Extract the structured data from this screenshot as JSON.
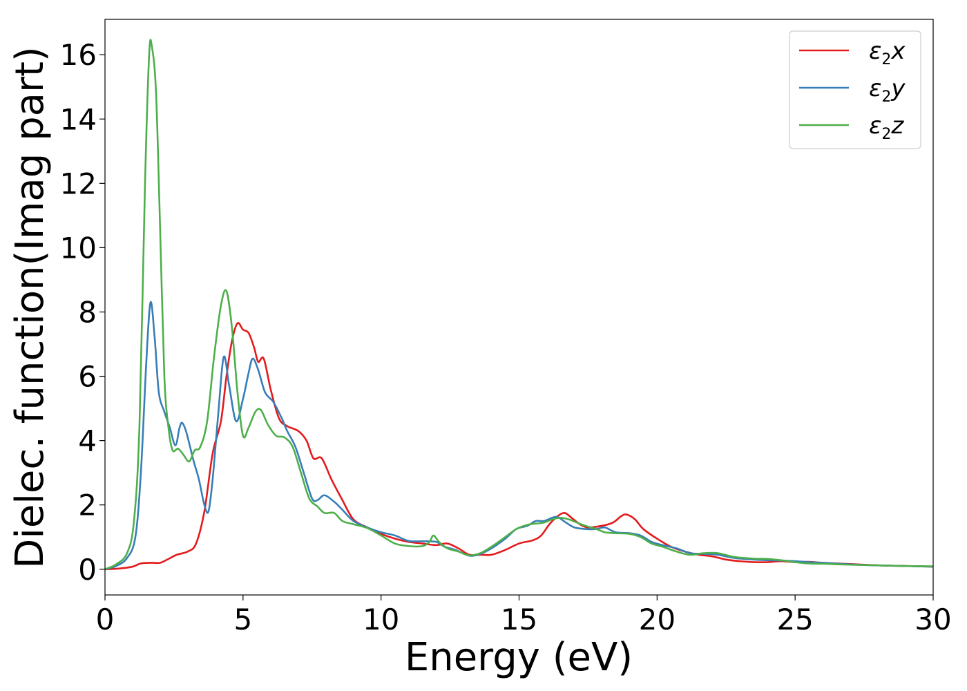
{
  "chart_data": {
    "type": "line",
    "xlabel": "Energy (eV)",
    "ylabel": "Dielec. function(Imag part)",
    "xlim": [
      0,
      30
    ],
    "ylim": [
      -0.8,
      17.1
    ],
    "xticks": [
      0,
      5,
      10,
      15,
      20,
      25,
      30
    ],
    "yticks": [
      0,
      2,
      4,
      6,
      8,
      10,
      12,
      14,
      16
    ],
    "grid": false,
    "legend_position": "top-right",
    "series": [
      {
        "name": "ε₂x",
        "legend_base": "ε",
        "legend_sub": "2",
        "legend_suffix": "x",
        "color": "#e41a1c",
        "points": [
          [
            0,
            0
          ],
          [
            0.5,
            0.02
          ],
          [
            1.0,
            0.08
          ],
          [
            1.3,
            0.18
          ],
          [
            1.7,
            0.2
          ],
          [
            2.0,
            0.2
          ],
          [
            2.3,
            0.32
          ],
          [
            2.6,
            0.45
          ],
          [
            3.0,
            0.55
          ],
          [
            3.3,
            0.8
          ],
          [
            3.6,
            1.8
          ],
          [
            3.9,
            3.6
          ],
          [
            4.2,
            4.6
          ],
          [
            4.4,
            6.0
          ],
          [
            4.6,
            7.1
          ],
          [
            4.8,
            7.65
          ],
          [
            5.0,
            7.45
          ],
          [
            5.2,
            7.35
          ],
          [
            5.4,
            6.9
          ],
          [
            5.55,
            6.45
          ],
          [
            5.75,
            6.55
          ],
          [
            6.0,
            5.6
          ],
          [
            6.3,
            4.7
          ],
          [
            6.6,
            4.45
          ],
          [
            7.0,
            4.3
          ],
          [
            7.3,
            4.0
          ],
          [
            7.55,
            3.45
          ],
          [
            7.85,
            3.45
          ],
          [
            8.2,
            2.8
          ],
          [
            8.6,
            2.15
          ],
          [
            9.0,
            1.55
          ],
          [
            9.5,
            1.3
          ],
          [
            10.0,
            1.1
          ],
          [
            10.5,
            0.95
          ],
          [
            11.0,
            0.85
          ],
          [
            11.5,
            0.8
          ],
          [
            12.0,
            0.75
          ],
          [
            12.4,
            0.8
          ],
          [
            12.8,
            0.65
          ],
          [
            13.2,
            0.45
          ],
          [
            13.6,
            0.45
          ],
          [
            14.0,
            0.45
          ],
          [
            14.5,
            0.6
          ],
          [
            15.0,
            0.8
          ],
          [
            15.5,
            0.9
          ],
          [
            15.8,
            1.05
          ],
          [
            16.1,
            1.4
          ],
          [
            16.4,
            1.65
          ],
          [
            16.65,
            1.75
          ],
          [
            16.9,
            1.6
          ],
          [
            17.2,
            1.4
          ],
          [
            17.5,
            1.3
          ],
          [
            18.0,
            1.35
          ],
          [
            18.4,
            1.45
          ],
          [
            18.7,
            1.65
          ],
          [
            18.9,
            1.7
          ],
          [
            19.2,
            1.55
          ],
          [
            19.5,
            1.25
          ],
          [
            20.0,
            0.95
          ],
          [
            20.5,
            0.7
          ],
          [
            21.0,
            0.55
          ],
          [
            21.5,
            0.45
          ],
          [
            22.0,
            0.4
          ],
          [
            22.5,
            0.3
          ],
          [
            23.0,
            0.25
          ],
          [
            23.5,
            0.22
          ],
          [
            24.0,
            0.22
          ],
          [
            24.5,
            0.25
          ],
          [
            25.0,
            0.22
          ],
          [
            25.5,
            0.23
          ],
          [
            26.0,
            0.2
          ],
          [
            27.0,
            0.16
          ],
          [
            28.0,
            0.12
          ],
          [
            29.0,
            0.1
          ],
          [
            30.0,
            0.08
          ]
        ]
      },
      {
        "name": "ε₂y",
        "legend_base": "ε",
        "legend_sub": "2",
        "legend_suffix": "y",
        "color": "#377eb8",
        "points": [
          [
            0,
            0
          ],
          [
            0.4,
            0.1
          ],
          [
            0.8,
            0.35
          ],
          [
            1.1,
            1.0
          ],
          [
            1.3,
            3.0
          ],
          [
            1.5,
            6.5
          ],
          [
            1.65,
            8.3
          ],
          [
            1.8,
            7.2
          ],
          [
            1.95,
            5.5
          ],
          [
            2.15,
            4.9
          ],
          [
            2.35,
            4.4
          ],
          [
            2.55,
            3.85
          ],
          [
            2.7,
            4.4
          ],
          [
            2.8,
            4.55
          ],
          [
            2.95,
            4.25
          ],
          [
            3.2,
            3.4
          ],
          [
            3.4,
            2.8
          ],
          [
            3.6,
            2.0
          ],
          [
            3.75,
            1.8
          ],
          [
            3.9,
            2.8
          ],
          [
            4.1,
            4.8
          ],
          [
            4.3,
            6.6
          ],
          [
            4.5,
            5.7
          ],
          [
            4.75,
            4.6
          ],
          [
            5.0,
            5.3
          ],
          [
            5.2,
            6.1
          ],
          [
            5.35,
            6.55
          ],
          [
            5.55,
            6.2
          ],
          [
            5.8,
            5.5
          ],
          [
            6.1,
            5.2
          ],
          [
            6.4,
            4.7
          ],
          [
            6.6,
            4.3
          ],
          [
            6.9,
            3.8
          ],
          [
            7.2,
            3.0
          ],
          [
            7.5,
            2.2
          ],
          [
            7.7,
            2.15
          ],
          [
            7.95,
            2.3
          ],
          [
            8.3,
            2.1
          ],
          [
            8.6,
            1.85
          ],
          [
            9.0,
            1.5
          ],
          [
            9.5,
            1.3
          ],
          [
            10.0,
            1.15
          ],
          [
            10.5,
            1.05
          ],
          [
            11.0,
            0.88
          ],
          [
            11.5,
            0.87
          ],
          [
            12.0,
            0.85
          ],
          [
            12.3,
            0.7
          ],
          [
            12.7,
            0.6
          ],
          [
            13.2,
            0.42
          ],
          [
            13.6,
            0.48
          ],
          [
            14.0,
            0.65
          ],
          [
            14.5,
            0.95
          ],
          [
            14.9,
            1.25
          ],
          [
            15.3,
            1.35
          ],
          [
            15.6,
            1.5
          ],
          [
            15.9,
            1.5
          ],
          [
            16.2,
            1.6
          ],
          [
            16.4,
            1.62
          ],
          [
            16.7,
            1.45
          ],
          [
            17.0,
            1.3
          ],
          [
            17.4,
            1.25
          ],
          [
            17.8,
            1.25
          ],
          [
            18.1,
            1.3
          ],
          [
            18.5,
            1.15
          ],
          [
            19.0,
            1.12
          ],
          [
            19.4,
            1.05
          ],
          [
            19.8,
            0.85
          ],
          [
            20.2,
            0.75
          ],
          [
            20.7,
            0.65
          ],
          [
            21.2,
            0.5
          ],
          [
            21.7,
            0.48
          ],
          [
            22.2,
            0.45
          ],
          [
            22.8,
            0.35
          ],
          [
            23.5,
            0.3
          ],
          [
            24.0,
            0.28
          ],
          [
            24.5,
            0.27
          ],
          [
            25.0,
            0.25
          ],
          [
            25.5,
            0.22
          ],
          [
            26.0,
            0.2
          ],
          [
            27.0,
            0.15
          ],
          [
            28.0,
            0.12
          ],
          [
            29.0,
            0.1
          ],
          [
            30.0,
            0.08
          ]
        ]
      },
      {
        "name": "ε₂z",
        "legend_base": "ε",
        "legend_sub": "2",
        "legend_suffix": "z",
        "color": "#4daf4a",
        "points": [
          [
            0,
            0
          ],
          [
            0.4,
            0.15
          ],
          [
            0.8,
            0.5
          ],
          [
            1.05,
            1.5
          ],
          [
            1.25,
            4.5
          ],
          [
            1.45,
            12.0
          ],
          [
            1.6,
            16.0
          ],
          [
            1.7,
            16.25
          ],
          [
            1.85,
            14.8
          ],
          [
            2.0,
            10.5
          ],
          [
            2.15,
            6.0
          ],
          [
            2.3,
            4.4
          ],
          [
            2.45,
            3.7
          ],
          [
            2.65,
            3.75
          ],
          [
            2.85,
            3.55
          ],
          [
            3.05,
            3.35
          ],
          [
            3.25,
            3.7
          ],
          [
            3.45,
            3.8
          ],
          [
            3.7,
            4.6
          ],
          [
            3.95,
            6.6
          ],
          [
            4.2,
            8.2
          ],
          [
            4.4,
            8.65
          ],
          [
            4.6,
            7.5
          ],
          [
            4.8,
            5.5
          ],
          [
            5.0,
            4.15
          ],
          [
            5.2,
            4.4
          ],
          [
            5.45,
            4.9
          ],
          [
            5.65,
            4.95
          ],
          [
            5.9,
            4.5
          ],
          [
            6.2,
            4.15
          ],
          [
            6.5,
            4.1
          ],
          [
            6.8,
            3.8
          ],
          [
            7.1,
            3.0
          ],
          [
            7.4,
            2.2
          ],
          [
            7.7,
            1.95
          ],
          [
            7.95,
            1.75
          ],
          [
            8.3,
            1.75
          ],
          [
            8.6,
            1.5
          ],
          [
            9.0,
            1.4
          ],
          [
            9.5,
            1.28
          ],
          [
            10.0,
            1.05
          ],
          [
            10.5,
            0.8
          ],
          [
            11.0,
            0.72
          ],
          [
            11.5,
            0.72
          ],
          [
            11.75,
            0.85
          ],
          [
            11.9,
            1.05
          ],
          [
            12.1,
            0.85
          ],
          [
            12.4,
            0.65
          ],
          [
            12.8,
            0.55
          ],
          [
            13.2,
            0.43
          ],
          [
            13.6,
            0.5
          ],
          [
            14.0,
            0.7
          ],
          [
            14.5,
            1.0
          ],
          [
            14.9,
            1.25
          ],
          [
            15.3,
            1.38
          ],
          [
            15.6,
            1.42
          ],
          [
            15.9,
            1.45
          ],
          [
            16.2,
            1.55
          ],
          [
            16.5,
            1.6
          ],
          [
            16.8,
            1.55
          ],
          [
            17.1,
            1.45
          ],
          [
            17.4,
            1.35
          ],
          [
            17.8,
            1.25
          ],
          [
            18.1,
            1.15
          ],
          [
            18.5,
            1.12
          ],
          [
            19.0,
            1.1
          ],
          [
            19.4,
            1.0
          ],
          [
            19.8,
            0.8
          ],
          [
            20.2,
            0.7
          ],
          [
            20.7,
            0.55
          ],
          [
            21.2,
            0.45
          ],
          [
            21.7,
            0.5
          ],
          [
            22.2,
            0.5
          ],
          [
            22.8,
            0.38
          ],
          [
            23.5,
            0.33
          ],
          [
            24.0,
            0.32
          ],
          [
            24.5,
            0.28
          ],
          [
            25.0,
            0.22
          ],
          [
            25.5,
            0.18
          ],
          [
            26.0,
            0.17
          ],
          [
            27.0,
            0.14
          ],
          [
            28.0,
            0.12
          ],
          [
            29.0,
            0.1
          ],
          [
            30.0,
            0.09
          ]
        ]
      }
    ]
  }
}
